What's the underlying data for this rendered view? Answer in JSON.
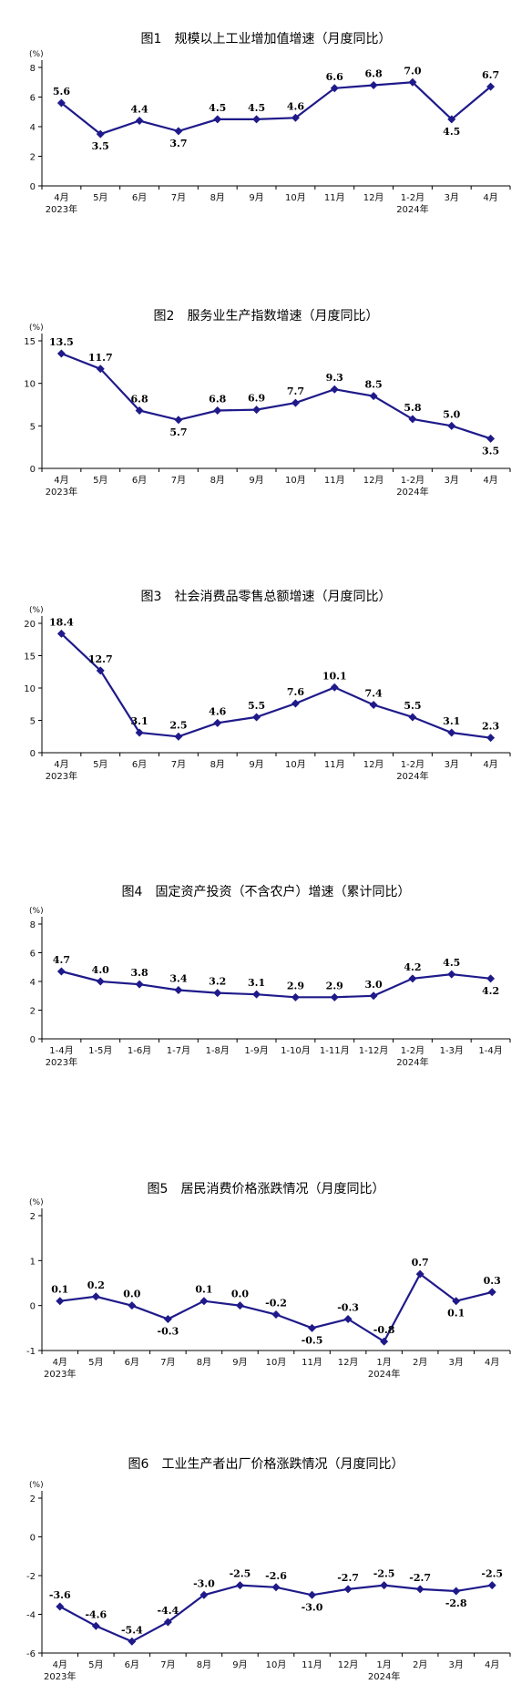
{
  "chart_data": [
    {
      "type": "line",
      "title": "图1　规模以上工业增加值增速（月度同比）",
      "unit": "(%)",
      "categories": [
        "4月",
        "5月",
        "6月",
        "7月",
        "8月",
        "9月",
        "10月",
        "11月",
        "12月",
        "1-2月",
        "3月",
        "4月"
      ],
      "year_labels": {
        "0": "2023年",
        "9": "2024年"
      },
      "series": [
        {
          "values": [
            5.6,
            3.5,
            4.4,
            3.7,
            4.5,
            4.5,
            4.6,
            6.6,
            6.8,
            7.0,
            4.5,
            6.7
          ]
        }
      ],
      "data_labels": [
        "5.6",
        "3.5",
        "4.4",
        "3.7",
        "4.5",
        "4.5",
        "4.6",
        "6.6",
        "6.8",
        "7.0",
        "4.5",
        "6.7"
      ],
      "ylim": [
        0,
        8
      ],
      "yticks": [
        0,
        2,
        4,
        6,
        8
      ],
      "color": "#1f1a8a"
    },
    {
      "type": "line",
      "title": "图2　服务业生产指数增速（月度同比）",
      "unit": "(%)",
      "categories": [
        "4月",
        "5月",
        "6月",
        "7月",
        "8月",
        "9月",
        "10月",
        "11月",
        "12月",
        "1-2月",
        "3月",
        "4月"
      ],
      "year_labels": {
        "0": "2023年",
        "9": "2024年"
      },
      "series": [
        {
          "values": [
            13.5,
            11.7,
            6.8,
            5.7,
            6.8,
            6.9,
            7.7,
            9.3,
            8.5,
            5.8,
            5.0,
            3.5
          ]
        }
      ],
      "data_labels": [
        "13.5",
        "11.7",
        "6.8",
        "5.7",
        "6.8",
        "6.9",
        "7.7",
        "9.3",
        "8.5",
        "5.8",
        "5.0",
        "3.5"
      ],
      "ylim": [
        0,
        15
      ],
      "yticks": [
        0,
        5,
        10,
        15
      ],
      "color": "#1f1a8a"
    },
    {
      "type": "line",
      "title": "图3　社会消费品零售总额增速（月度同比）",
      "unit": "(%)",
      "categories": [
        "4月",
        "5月",
        "6月",
        "7月",
        "8月",
        "9月",
        "10月",
        "11月",
        "12月",
        "1-2月",
        "3月",
        "4月"
      ],
      "year_labels": {
        "0": "2023年",
        "9": "2024年"
      },
      "series": [
        {
          "values": [
            18.4,
            12.7,
            3.1,
            2.5,
            4.6,
            5.5,
            7.6,
            10.1,
            7.4,
            5.5,
            3.1,
            2.3
          ]
        }
      ],
      "data_labels": [
        "18.4",
        "12.7",
        "3.1",
        "2.5",
        "4.6",
        "5.5",
        "7.6",
        "10.1",
        "7.4",
        "5.5",
        "3.1",
        "2.3"
      ],
      "ylim": [
        0,
        20
      ],
      "yticks": [
        0,
        5,
        10,
        15,
        20
      ],
      "color": "#1f1a8a"
    },
    {
      "type": "line",
      "title": "图4　固定资产投资（不含农户）增速（累计同比）",
      "unit": "(%)",
      "categories": [
        "1-4月",
        "1-5月",
        "1-6月",
        "1-7月",
        "1-8月",
        "1-9月",
        "1-10月",
        "1-11月",
        "1-12月",
        "1-2月",
        "1-3月",
        "1-4月"
      ],
      "year_labels": {
        "0": "2023年",
        "9": "2024年"
      },
      "series": [
        {
          "values": [
            4.7,
            4.0,
            3.8,
            3.4,
            3.2,
            3.1,
            2.9,
            2.9,
            3.0,
            4.2,
            4.5,
            4.2
          ]
        }
      ],
      "data_labels": [
        "4.7",
        "4.0",
        "3.8",
        "3.4",
        "3.2",
        "3.1",
        "2.9",
        "2.9",
        "3.0",
        "4.2",
        "4.5",
        "4.2"
      ],
      "ylim": [
        0,
        8
      ],
      "yticks": [
        0,
        2,
        4,
        6,
        8
      ],
      "color": "#1f1a8a"
    },
    {
      "type": "line",
      "title": "图5　居民消费价格涨跌情况（月度同比）",
      "unit": "(%)",
      "categories": [
        "4月",
        "5月",
        "6月",
        "7月",
        "8月",
        "9月",
        "10月",
        "11月",
        "12月",
        "1月",
        "2月",
        "3月",
        "4月"
      ],
      "year_labels": {
        "0": "2023年",
        "9": "2024年"
      },
      "series": [
        {
          "values": [
            0.1,
            0.2,
            0.0,
            -0.3,
            0.1,
            0.0,
            -0.2,
            -0.5,
            -0.3,
            -0.8,
            0.7,
            0.1,
            0.3
          ]
        }
      ],
      "data_labels": [
        "0.1",
        "0.2",
        "0.0",
        "-0.3",
        "0.1",
        "0.0",
        "-0.2",
        "-0.5",
        "-0.3",
        "-0.8",
        "0.7",
        "0.1",
        "0.3"
      ],
      "ylim": [
        -1,
        2
      ],
      "yticks": [
        -1,
        0,
        1,
        2
      ],
      "color": "#1f1a8a"
    },
    {
      "type": "line",
      "title": "图6　工业生产者出厂价格涨跌情况（月度同比）",
      "unit": "(%)",
      "categories": [
        "4月",
        "5月",
        "6月",
        "7月",
        "8月",
        "9月",
        "10月",
        "11月",
        "12月",
        "1月",
        "2月",
        "3月",
        "4月"
      ],
      "year_labels": {
        "0": "2023年",
        "9": "2024年"
      },
      "series": [
        {
          "values": [
            -3.6,
            -4.6,
            -5.4,
            -4.4,
            -3.0,
            -2.5,
            -2.6,
            -3.0,
            -2.7,
            -2.5,
            -2.7,
            -2.8,
            -2.5
          ]
        }
      ],
      "data_labels": [
        "-3.6",
        "-4.6",
        "-5.4",
        "-4.4",
        "-3.0",
        "-2.5",
        "-2.6",
        "-3.0",
        "-2.7",
        "-2.5",
        "-2.7",
        "-2.8",
        "-2.5"
      ],
      "ylim": [
        -6,
        2
      ],
      "yticks": [
        -6,
        -4,
        -2,
        0,
        2
      ],
      "color": "#1f1a8a"
    }
  ]
}
